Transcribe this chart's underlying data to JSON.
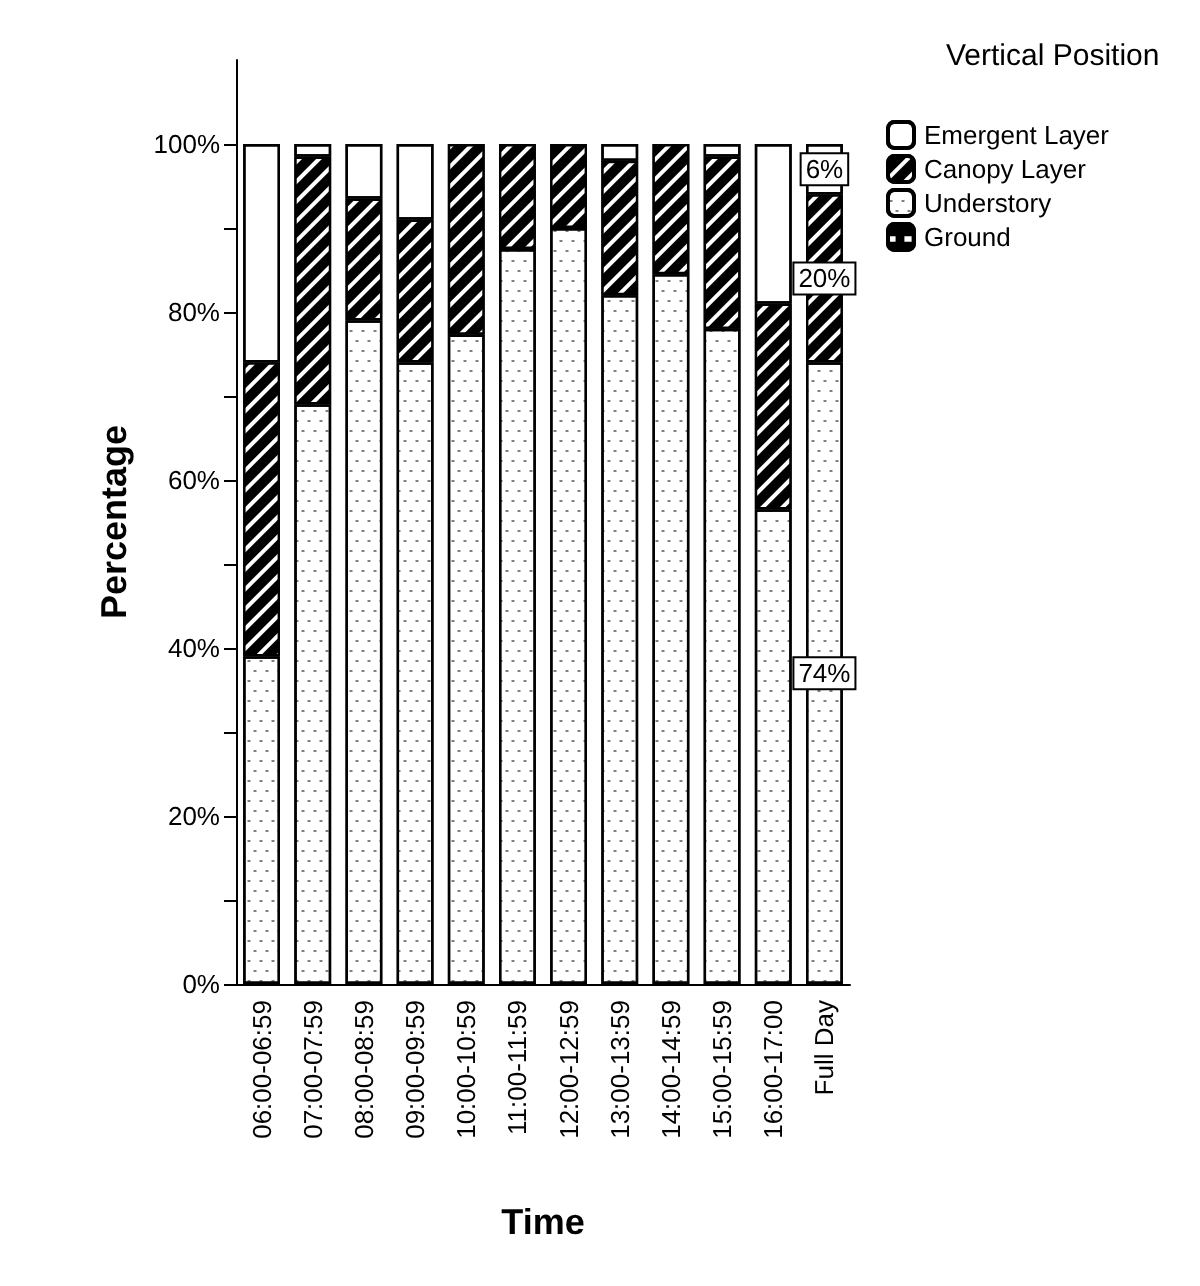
{
  "chart_data": {
    "type": "bar",
    "stacked": true,
    "xlabel": "Time",
    "ylabel": "Percentage",
    "legend_title": "Vertical Position",
    "legend": "top right",
    "categories": [
      "06:00-06:59",
      "07:00-07:59",
      "08:00-08:59",
      "09:00-09:59",
      "10:00-10:59",
      "11:00-11:59",
      "12:00-12:59",
      "13:00-13:59",
      "14:00-14:59",
      "15:00-15:59",
      "16:00-17:00",
      "Full Day"
    ],
    "series": [
      {
        "name": "Ground",
        "color": "#000000",
        "values": [
          0,
          0,
          0,
          0,
          0,
          0,
          0,
          0,
          0,
          0,
          0,
          0
        ]
      },
      {
        "name": "Understory",
        "color": "#ffffff",
        "values": [
          39,
          69,
          79,
          74,
          77.3,
          87.5,
          90,
          82,
          84.5,
          78,
          56.5,
          74
        ],
        "value_labels": [
          null,
          null,
          null,
          null,
          null,
          null,
          null,
          null,
          null,
          null,
          null,
          "74%"
        ]
      },
      {
        "name": "Canopy Layer",
        "color": "#000000",
        "values": [
          35,
          29.5,
          14.5,
          17,
          22.7,
          12.5,
          10,
          16,
          15.5,
          20.5,
          24.5,
          20
        ],
        "value_labels": [
          null,
          null,
          null,
          null,
          null,
          null,
          null,
          null,
          null,
          null,
          null,
          "20%"
        ]
      },
      {
        "name": "Emergent Layer",
        "color": "#ffffff",
        "values": [
          26,
          1.5,
          6.5,
          9,
          0,
          0,
          0,
          2,
          0,
          1.5,
          19,
          6
        ],
        "value_labels": [
          null,
          null,
          null,
          null,
          null,
          null,
          null,
          null,
          null,
          null,
          null,
          "6%"
        ]
      }
    ],
    "ylim": [
      0,
      110
    ],
    "yticks": [
      {
        "value": 0,
        "label": "0%"
      },
      {
        "value": 10,
        "label": null
      },
      {
        "value": 20,
        "label": "20%"
      },
      {
        "value": 30,
        "label": null
      },
      {
        "value": 40,
        "label": "40%"
      },
      {
        "value": 50,
        "label": null
      },
      {
        "value": 60,
        "label": "60%"
      },
      {
        "value": 70,
        "label": null
      },
      {
        "value": 80,
        "label": "80%"
      },
      {
        "value": 90,
        "label": null
      },
      {
        "value": 100,
        "label": "100%"
      }
    ],
    "grid": false
  }
}
